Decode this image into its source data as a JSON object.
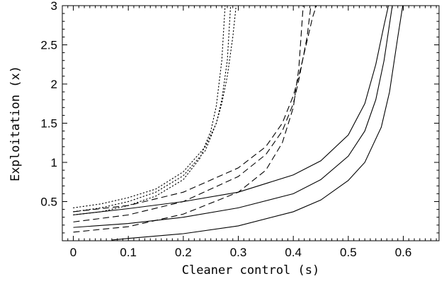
{
  "chart_data": {
    "type": "line",
    "title": "",
    "xlabel": "Cleaner control (s)",
    "ylabel": "Exploitation (x)",
    "xlim": [
      -0.02,
      0.665
    ],
    "ylim": [
      0,
      3
    ],
    "xticks": [
      0,
      0.1,
      0.2,
      0.3,
      0.4,
      0.5,
      0.6
    ],
    "xtick_labels": [
      "0",
      "0.1",
      "0.2",
      "0.3",
      "0.4",
      "0.5",
      "0.6"
    ],
    "yticks": [
      0.5,
      1,
      1.5,
      2,
      2.5,
      3
    ],
    "ytick_labels": [
      "0.5",
      "1",
      "1.5",
      "2",
      "2.5",
      "3"
    ],
    "grid": false,
    "legend": "none",
    "series": [
      {
        "style": "dotted",
        "x": [
          0,
          0.05,
          0.1,
          0.15,
          0.2,
          0.24,
          0.26,
          0.27,
          0.28,
          0.29,
          0.296
        ],
        "y": [
          0.42,
          0.47,
          0.55,
          0.66,
          0.88,
          1.2,
          1.5,
          1.75,
          2.1,
          2.6,
          3.0
        ]
      },
      {
        "style": "dotted",
        "x": [
          0,
          0.05,
          0.1,
          0.15,
          0.2,
          0.24,
          0.26,
          0.27,
          0.28,
          0.286
        ],
        "y": [
          0.37,
          0.42,
          0.5,
          0.62,
          0.83,
          1.15,
          1.5,
          1.8,
          2.3,
          3.0
        ]
      },
      {
        "style": "dotted",
        "x": [
          0,
          0.05,
          0.1,
          0.15,
          0.2,
          0.23,
          0.25,
          0.26,
          0.27,
          0.276
        ],
        "y": [
          0.33,
          0.37,
          0.45,
          0.57,
          0.78,
          1.05,
          1.4,
          1.72,
          2.3,
          3.0
        ]
      },
      {
        "style": "dashed",
        "x": [
          0,
          0.1,
          0.2,
          0.3,
          0.35,
          0.38,
          0.4,
          0.41,
          0.42,
          0.435,
          0.442
        ],
        "y": [
          0.37,
          0.45,
          0.62,
          0.93,
          1.2,
          1.5,
          1.85,
          2.1,
          2.4,
          2.85,
          3.0
        ]
      },
      {
        "style": "dashed",
        "x": [
          0,
          0.1,
          0.2,
          0.3,
          0.35,
          0.38,
          0.4,
          0.41,
          0.425,
          0.432
        ],
        "y": [
          0.24,
          0.33,
          0.5,
          0.82,
          1.1,
          1.4,
          1.75,
          2.05,
          2.6,
          3.0
        ]
      },
      {
        "style": "dashed",
        "x": [
          0,
          0.1,
          0.2,
          0.3,
          0.35,
          0.38,
          0.4,
          0.41,
          0.418
        ],
        "y": [
          0.11,
          0.18,
          0.34,
          0.62,
          0.9,
          1.25,
          1.7,
          2.2,
          3.0
        ]
      },
      {
        "style": "solid",
        "x": [
          0,
          0.1,
          0.2,
          0.3,
          0.4,
          0.45,
          0.5,
          0.53,
          0.55,
          0.565,
          0.573
        ],
        "y": [
          0.33,
          0.41,
          0.5,
          0.62,
          0.84,
          1.02,
          1.35,
          1.75,
          2.25,
          2.75,
          3.0
        ]
      },
      {
        "style": "solid",
        "x": [
          0,
          0.1,
          0.2,
          0.3,
          0.4,
          0.45,
          0.5,
          0.53,
          0.55,
          0.565,
          0.58
        ],
        "y": [
          0.17,
          0.22,
          0.3,
          0.42,
          0.6,
          0.78,
          1.08,
          1.4,
          1.8,
          2.3,
          3.0
        ]
      },
      {
        "style": "solid",
        "x": [
          0.07,
          0.1,
          0.2,
          0.3,
          0.4,
          0.45,
          0.5,
          0.53,
          0.56,
          0.575,
          0.59,
          0.599
        ],
        "y": [
          0.01,
          0.03,
          0.09,
          0.19,
          0.37,
          0.52,
          0.77,
          1.0,
          1.45,
          1.9,
          2.6,
          3.0
        ]
      }
    ]
  }
}
